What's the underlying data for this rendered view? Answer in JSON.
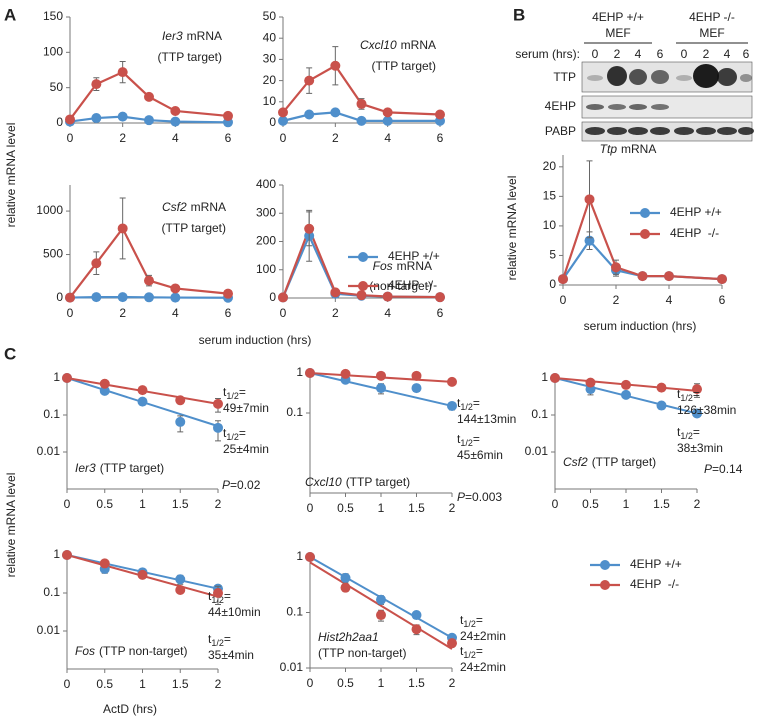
{
  "figure": {
    "panel_labels": [
      "A",
      "B",
      "C"
    ],
    "panel_a": {
      "y_label": "relative mRNA level",
      "x_label": "serum induction (hrs)"
    },
    "panel_b": {
      "header": [
        {
          "genotype": "4EHP +/+",
          "cells": "MEF"
        },
        {
          "genotype": "4EHP -/-",
          "cells": "MEF"
        }
      ],
      "serum_label": "serum (hrs):",
      "lanes": [
        "0",
        "2",
        "4",
        "6",
        "0",
        "2",
        "4",
        "6"
      ],
      "rows": [
        "TTP",
        "4EHP",
        "PABP"
      ],
      "y_label": "relative mRNA level",
      "x_label": "serum induction (hrs)"
    },
    "panel_c": {
      "y_label": "relative mRNA level",
      "x_label": "ActD (hrs)",
      "half_life_symbol": "t",
      "half_life_subscript": "1/2",
      "half_life_equals": "="
    }
  },
  "chart_data": [
    {
      "type": "line",
      "title": "Ier3",
      "title_suffix": "mRNA",
      "subtitle": "(TTP target)",
      "x": [
        0,
        1,
        2,
        3,
        4,
        6
      ],
      "xlim": [
        0,
        6
      ],
      "xticks": [
        0,
        2,
        4,
        6
      ],
      "ylim": [
        0,
        150
      ],
      "yticks": [
        0,
        50,
        100,
        150
      ],
      "series": [
        {
          "name": "4EHP +/+",
          "color": "#4f8fcb",
          "values": [
            2,
            7,
            9,
            4,
            2,
            1
          ],
          "errors": [
            0.5,
            1,
            1,
            1,
            0.5,
            0.5
          ]
        },
        {
          "name": "4EHP  -/-",
          "color": "#c9514b",
          "values": [
            5,
            55,
            72,
            37,
            17,
            10
          ],
          "errors": [
            1,
            9,
            15,
            3,
            2,
            1
          ]
        }
      ]
    },
    {
      "type": "line",
      "title": "Cxcl10",
      "title_suffix": "mRNA",
      "subtitle": "(TTP target)",
      "x": [
        0,
        1,
        2,
        3,
        4,
        6
      ],
      "xlim": [
        0,
        6
      ],
      "xticks": [
        0,
        2,
        4,
        6
      ],
      "ylim": [
        0,
        50
      ],
      "yticks": [
        0,
        10,
        20,
        30,
        40,
        50
      ],
      "series": [
        {
          "name": "4EHP +/+",
          "color": "#4f8fcb",
          "values": [
            1,
            4,
            5,
            1,
            1,
            1
          ],
          "errors": [
            0.2,
            0.5,
            1,
            0.2,
            0.2,
            0.2
          ]
        },
        {
          "name": "4EHP  -/-",
          "color": "#c9514b",
          "values": [
            5,
            20,
            27,
            9,
            5,
            4
          ],
          "errors": [
            0.5,
            6,
            9,
            2.5,
            0.5,
            0.3
          ]
        }
      ]
    },
    {
      "type": "line",
      "title": "Csf2",
      "title_suffix": "mRNA",
      "subtitle": "(TTP target)",
      "x": [
        0,
        1,
        2,
        3,
        4,
        6
      ],
      "xlim": [
        0,
        6
      ],
      "xticks": [
        0,
        2,
        4,
        6
      ],
      "ylim": [
        0,
        1300
      ],
      "yticks": [
        0,
        500,
        1000
      ],
      "series": [
        {
          "name": "4EHP +/+",
          "color": "#4f8fcb",
          "values": [
            5,
            10,
            10,
            8,
            5,
            3
          ],
          "errors": [
            2,
            3,
            3,
            2,
            2,
            1
          ]
        },
        {
          "name": "4EHP  -/-",
          "color": "#c9514b",
          "values": [
            5,
            400,
            800,
            200,
            110,
            50
          ],
          "errors": [
            2,
            130,
            350,
            60,
            10,
            10
          ]
        }
      ]
    },
    {
      "type": "line",
      "title": "Fos",
      "title_suffix": "mRNA",
      "subtitle": "(non-target)",
      "legend": "center-right",
      "x": [
        0,
        1,
        2,
        3,
        4,
        6
      ],
      "xlim": [
        0,
        6
      ],
      "xticks": [
        0,
        2,
        4,
        6
      ],
      "ylim": [
        0,
        400
      ],
      "yticks": [
        0,
        100,
        200,
        300,
        400
      ],
      "series": [
        {
          "name": "4EHP +/+",
          "color": "#4f8fcb",
          "values": [
            2,
            220,
            15,
            8,
            5,
            3
          ],
          "errors": [
            0.5,
            90,
            3,
            2,
            1,
            1
          ]
        },
        {
          "name": "4EHP  -/-",
          "color": "#c9514b",
          "values": [
            2,
            245,
            20,
            10,
            5,
            3
          ],
          "errors": [
            0.5,
            60,
            3,
            2,
            1,
            1
          ]
        }
      ]
    },
    {
      "type": "line",
      "title": "Ttp",
      "title_suffix": "mRNA",
      "legend": "upper-right",
      "x": [
        0,
        1,
        2,
        3,
        4,
        6
      ],
      "xlim": [
        0,
        6
      ],
      "xticks": [
        0,
        2,
        4,
        6
      ],
      "ylim": [
        0,
        22
      ],
      "yticks": [
        0,
        5,
        10,
        15,
        20
      ],
      "series": [
        {
          "name": "4EHP +/+",
          "color": "#4f8fcb",
          "values": [
            1,
            7.5,
            2.5,
            1.5,
            1.5,
            1
          ],
          "errors": [
            0.2,
            1.5,
            1,
            0.3,
            0.3,
            0.2
          ]
        },
        {
          "name": "4EHP  -/-",
          "color": "#c9514b",
          "values": [
            1,
            14.5,
            3,
            1.5,
            1.5,
            1
          ],
          "errors": [
            0.2,
            6.5,
            1.2,
            0.3,
            0.3,
            0.2
          ]
        }
      ]
    },
    {
      "type": "decay",
      "title": "Ier3",
      "subtitle": "(TTP target)",
      "log_y": true,
      "p_symbol": "P",
      "p_text": "=0.02",
      "x": [
        0,
        0.5,
        1,
        1.5,
        2
      ],
      "xlim": [
        0,
        2
      ],
      "xticks": [
        0,
        0.5,
        1,
        1.5,
        2
      ],
      "ylim": [
        0.001,
        1
      ],
      "yticks": [
        0.01,
        0.1,
        1
      ],
      "series": [
        {
          "name": "4EHP +/+",
          "color": "#4f8fcb",
          "values": [
            1,
            0.45,
            0.23,
            0.065,
            0.045
          ],
          "errors": [
            0,
            0.08,
            0.03,
            0.03,
            0.025
          ],
          "fit": [
            1,
            0.05
          ],
          "half_life": "25±4min"
        },
        {
          "name": "4EHP  -/-",
          "color": "#c9514b",
          "values": [
            1,
            0.7,
            0.47,
            0.25,
            0.2
          ],
          "errors": [
            0,
            0.05,
            0.05,
            0.05,
            0.08
          ],
          "fit": [
            1,
            0.2
          ],
          "half_life": "49±7min"
        }
      ]
    },
    {
      "type": "decay",
      "title": "Cxcl10",
      "subtitle": "(TTP target)",
      "log_y": true,
      "p_symbol": "P",
      "p_text": "=0.003",
      "x": [
        0,
        0.5,
        1,
        1.5,
        2
      ],
      "xlim": [
        0,
        2
      ],
      "xticks": [
        0,
        0.5,
        1,
        1.5,
        2
      ],
      "ylim": [
        0.001,
        1
      ],
      "yticks": [
        0.1,
        1
      ],
      "series": [
        {
          "name": "4EHP +/+",
          "color": "#4f8fcb",
          "values": [
            1,
            0.68,
            0.42,
            0.42,
            0.15
          ],
          "errors": [
            0,
            0.05,
            0.12,
            0.02,
            0.03
          ],
          "fit": [
            1,
            0.15
          ],
          "half_life": "45±6min"
        },
        {
          "name": "4EHP  -/-",
          "color": "#c9514b",
          "values": [
            1,
            0.95,
            0.85,
            0.85,
            0.6
          ],
          "errors": [
            0,
            0.05,
            0.15,
            0.15,
            0.1
          ],
          "fit": [
            1,
            0.6
          ],
          "half_life": "144±13min"
        }
      ]
    },
    {
      "type": "decay",
      "title": "Csf2",
      "subtitle": "(TTP target)",
      "log_y": true,
      "p_symbol": "P",
      "p_text": "=0.14",
      "x": [
        0,
        0.5,
        1,
        1.5,
        2
      ],
      "xlim": [
        0,
        2
      ],
      "xticks": [
        0,
        0.5,
        1,
        1.5,
        2
      ],
      "ylim": [
        0.001,
        1
      ],
      "yticks": [
        0.01,
        0.1,
        1
      ],
      "series": [
        {
          "name": "4EHP +/+",
          "color": "#4f8fcb",
          "values": [
            1,
            0.5,
            0.35,
            0.18,
            0.11
          ],
          "errors": [
            0,
            0.15,
            0.06,
            0.02,
            0.01
          ],
          "fit": [
            1,
            0.11
          ],
          "half_life": "38±3min"
        },
        {
          "name": "4EHP  -/-",
          "color": "#c9514b",
          "values": [
            1,
            0.75,
            0.65,
            0.55,
            0.5
          ],
          "errors": [
            0,
            0.03,
            0.05,
            0.1,
            0.2
          ],
          "fit": [
            1,
            0.45
          ],
          "half_life": "126±38min"
        }
      ]
    },
    {
      "type": "decay",
      "title": "Fos",
      "subtitle": "(TTP non-target)",
      "log_y": true,
      "x": [
        0,
        0.5,
        1,
        1.5,
        2
      ],
      "xlim": [
        0,
        2
      ],
      "xticks": [
        0,
        0.5,
        1,
        1.5,
        2
      ],
      "ylim": [
        0.001,
        1
      ],
      "yticks": [
        0.01,
        0.1,
        1
      ],
      "series": [
        {
          "name": "4EHP +/+",
          "color": "#4f8fcb",
          "values": [
            1,
            0.43,
            0.35,
            0.23,
            0.13
          ],
          "errors": [
            0,
            0.1,
            0.05,
            0.06,
            0.03
          ],
          "fit": [
            1,
            0.13
          ],
          "half_life": "44±10min"
        },
        {
          "name": "4EHP  -/-",
          "color": "#c9514b",
          "values": [
            1,
            0.6,
            0.3,
            0.12,
            0.1
          ],
          "errors": [
            0,
            0.05,
            0.06,
            0.02,
            0.05
          ],
          "fit": [
            1,
            0.08
          ],
          "half_life": "35±4min"
        }
      ]
    },
    {
      "type": "decay",
      "title": "Hist2h2aa1",
      "subtitle": "(TTP non-target)",
      "log_y": true,
      "legend": "outside-right",
      "x": [
        0,
        0.5,
        1,
        1.5,
        2
      ],
      "xlim": [
        0,
        2
      ],
      "xticks": [
        0,
        0.5,
        1,
        1.5,
        2
      ],
      "ylim": [
        0.01,
        1
      ],
      "yticks": [
        0.01,
        0.1,
        1
      ],
      "series": [
        {
          "name": "4EHP +/+",
          "color": "#4f8fcb",
          "values": [
            1,
            0.42,
            0.17,
            0.09,
            0.035
          ],
          "errors": [
            0,
            0.08,
            0.03,
            0.01,
            0.005
          ],
          "fit": [
            1,
            0.035
          ],
          "half_life": "24±2min"
        },
        {
          "name": "4EHP  -/-",
          "color": "#c9514b",
          "values": [
            1,
            0.28,
            0.09,
            0.05,
            0.028
          ],
          "errors": [
            0,
            0.04,
            0.02,
            0.01,
            0.004
          ],
          "fit": [
            0.8,
            0.022
          ],
          "half_life": "24±2min"
        }
      ]
    }
  ]
}
